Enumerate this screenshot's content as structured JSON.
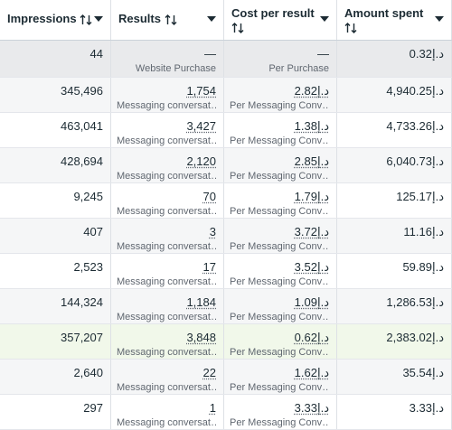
{
  "header": {
    "columns": [
      "Impressions",
      "Results",
      "Cost per result",
      "Amount spent"
    ]
  },
  "table": {
    "rows": [
      {
        "impressions": "44",
        "results": "—",
        "results_label": "Website Purchase",
        "cost": "—",
        "cost_label": "Per Purchase",
        "amount": "د.إ0.32"
      },
      {
        "impressions": "345,496",
        "results": "1,754",
        "results_label": "Messaging conversat…",
        "cost": "د.إ2.82",
        "cost_label": "Per Messaging Conv…",
        "amount": "د.إ4,940.25"
      },
      {
        "impressions": "463,041",
        "results": "3,427",
        "results_label": "Messaging conversat…",
        "cost": "د.إ1.38",
        "cost_label": "Per Messaging Conv…",
        "amount": "د.إ4,733.26"
      },
      {
        "impressions": "428,694",
        "results": "2,120",
        "results_label": "Messaging conversat…",
        "cost": "د.إ2.85",
        "cost_label": "Per Messaging Conv…",
        "amount": "د.إ6,040.73"
      },
      {
        "impressions": "9,245",
        "results": "70",
        "results_label": "Messaging conversat…",
        "cost": "د.إ1.79",
        "cost_label": "Per Messaging Conv…",
        "amount": "د.إ125.17"
      },
      {
        "impressions": "407",
        "results": "3",
        "results_label": "Messaging conversat…",
        "cost": "د.إ3.72",
        "cost_label": "Per Messaging Conv…",
        "amount": "د.إ11.16"
      },
      {
        "impressions": "2,523",
        "results": "17",
        "results_label": "Messaging conversat…",
        "cost": "د.إ3.52",
        "cost_label": "Per Messaging Conv…",
        "amount": "د.إ59.89"
      },
      {
        "impressions": "144,324",
        "results": "1,184",
        "results_label": "Messaging conversat…",
        "cost": "د.إ1.09",
        "cost_label": "Per Messaging Conv…",
        "amount": "د.إ1,286.53"
      },
      {
        "impressions": "357,207",
        "results": "3,848",
        "results_label": "Messaging conversat…",
        "cost": "د.إ0.62",
        "cost_label": "Per Messaging Conv…",
        "amount": "د.إ2,383.02"
      },
      {
        "impressions": "2,640",
        "results": "22",
        "results_label": "Messaging conversat…",
        "cost": "د.إ1.62",
        "cost_label": "Per Messaging Conv…",
        "amount": "د.إ35.54"
      },
      {
        "impressions": "297",
        "results": "1",
        "results_label": "Messaging conversat…",
        "cost": "د.إ3.33",
        "cost_label": "Per Messaging Conv…",
        "amount": "د.إ3.33"
      }
    ]
  }
}
